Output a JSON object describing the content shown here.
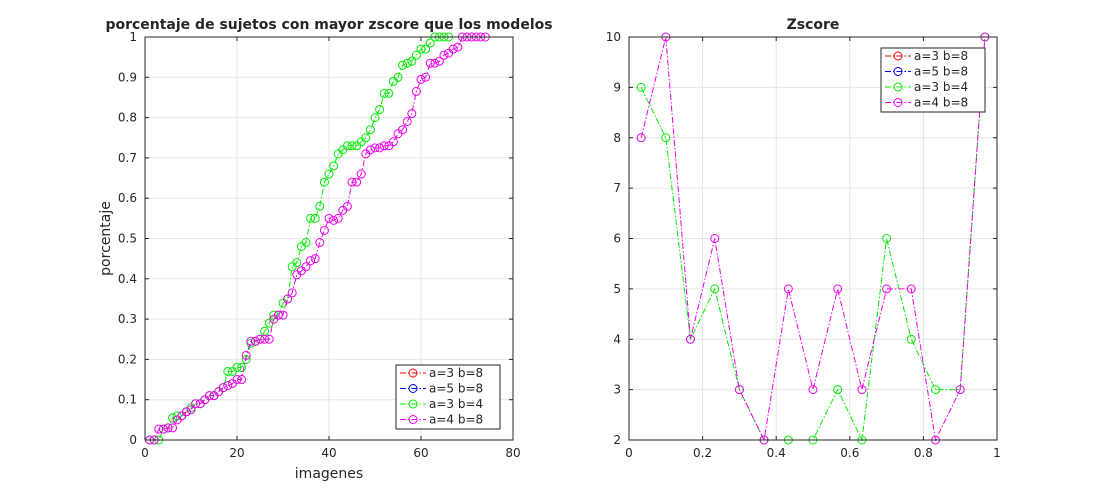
{
  "chart_data": [
    {
      "type": "line",
      "title": "porcentaje de sujetos con mayor zscore que los modelos",
      "xlabel": "imagenes",
      "ylabel": "porcentaje",
      "xlim": [
        0,
        80
      ],
      "ylim": [
        0,
        1
      ],
      "xticks": [
        "0",
        "20",
        "40",
        "60",
        "80"
      ],
      "yticks": [
        "0",
        "0.1",
        "0.2",
        "0.3",
        "0.4",
        "0.5",
        "0.6",
        "0.7",
        "0.8",
        "0.9",
        "1"
      ],
      "grid": true,
      "legend_position": "bottom-right",
      "series": [
        {
          "name": "a=3 b=8",
          "color": "#ff0000",
          "marker": "circle",
          "line": "dash-dot",
          "x": [],
          "y": []
        },
        {
          "name": "a=5 b=8",
          "color": "#0000ff",
          "marker": "circle",
          "line": "dash-dot",
          "x": [],
          "y": []
        },
        {
          "name": "a=3 b=4",
          "color": "#00ee00",
          "marker": "circle",
          "line": "dash-dot",
          "x": [
            1,
            2,
            3,
            4,
            5,
            6,
            7,
            8,
            9,
            10,
            11,
            12,
            13,
            14,
            15,
            16,
            17,
            18,
            19,
            20,
            21,
            22,
            23,
            24,
            25,
            26,
            27,
            28,
            29,
            30,
            31,
            32,
            33,
            34,
            35,
            36,
            37,
            38,
            39,
            40,
            41,
            42,
            43,
            44,
            45,
            46,
            47,
            48,
            49,
            50,
            51,
            52,
            53,
            54,
            55,
            56,
            57,
            58,
            59,
            60,
            61,
            62,
            63,
            64,
            65,
            66
          ],
          "y": [
            0,
            0,
            0,
            0.027,
            0.03,
            0.055,
            0.06,
            0.06,
            0.07,
            0.08,
            0.09,
            0.09,
            0.1,
            0.11,
            0.11,
            0.12,
            0.13,
            0.17,
            0.17,
            0.18,
            0.18,
            0.2,
            0.24,
            0.245,
            0.25,
            0.27,
            0.29,
            0.31,
            0.31,
            0.34,
            0.35,
            0.43,
            0.44,
            0.48,
            0.49,
            0.55,
            0.55,
            0.58,
            0.64,
            0.66,
            0.68,
            0.71,
            0.72,
            0.73,
            0.73,
            0.73,
            0.74,
            0.75,
            0.77,
            0.8,
            0.82,
            0.86,
            0.86,
            0.89,
            0.9,
            0.93,
            0.935,
            0.94,
            0.955,
            0.97,
            0.97,
            0.985,
            1,
            1,
            1,
            1
          ]
        },
        {
          "name": "a=4 b=8",
          "color": "#ee00ee",
          "marker": "circle",
          "line": "dash-dot",
          "x": [
            1,
            2,
            3,
            4,
            5,
            6,
            7,
            8,
            9,
            10,
            11,
            12,
            13,
            14,
            15,
            16,
            17,
            18,
            19,
            20,
            21,
            22,
            23,
            24,
            25,
            26,
            27,
            28,
            29,
            30,
            31,
            32,
            33,
            34,
            35,
            36,
            37,
            38,
            39,
            40,
            41,
            42,
            43,
            44,
            45,
            46,
            47,
            48,
            49,
            50,
            51,
            52,
            53,
            54,
            55,
            56,
            57,
            58,
            59,
            60,
            61,
            62,
            63,
            64,
            65,
            66,
            67,
            68,
            69,
            70,
            71,
            72,
            73,
            74
          ],
          "y": [
            0,
            0,
            0.027,
            0.027,
            0.03,
            0.03,
            0.05,
            0.06,
            0.07,
            0.075,
            0.09,
            0.09,
            0.1,
            0.11,
            0.11,
            0.12,
            0.13,
            0.135,
            0.14,
            0.15,
            0.15,
            0.21,
            0.245,
            0.245,
            0.25,
            0.25,
            0.25,
            0.3,
            0.31,
            0.31,
            0.35,
            0.365,
            0.41,
            0.42,
            0.43,
            0.445,
            0.45,
            0.49,
            0.52,
            0.55,
            0.545,
            0.55,
            0.57,
            0.58,
            0.64,
            0.64,
            0.66,
            0.71,
            0.72,
            0.725,
            0.725,
            0.73,
            0.73,
            0.74,
            0.76,
            0.77,
            0.79,
            0.81,
            0.865,
            0.895,
            0.9,
            0.935,
            0.935,
            0.94,
            0.955,
            0.96,
            0.97,
            0.975,
            1,
            1,
            1,
            1,
            1,
            1
          ]
        }
      ]
    },
    {
      "type": "line",
      "title": "Zscore",
      "xlabel": "",
      "ylabel": "",
      "xlim": [
        0,
        1
      ],
      "ylim": [
        2,
        10
      ],
      "xticks": [
        "0",
        "0.2",
        "0.4",
        "0.6",
        "0.8",
        "1"
      ],
      "yticks": [
        "2",
        "3",
        "4",
        "5",
        "6",
        "7",
        "8",
        "9",
        "10"
      ],
      "grid": true,
      "legend_position": "top-right",
      "series": [
        {
          "name": "a=3 b=8",
          "color": "#ff0000",
          "marker": "circle",
          "line": "dash-dot",
          "x": [],
          "y": []
        },
        {
          "name": "a=5 b=8",
          "color": "#0000ff",
          "marker": "circle",
          "line": "dash-dot",
          "x": [],
          "y": []
        },
        {
          "name": "a=3 b=4",
          "color": "#00ee00",
          "marker": "circle",
          "line": "dash-dot",
          "x": [
            0.033,
            0.1,
            0.167,
            0.233,
            0.3,
            0.367,
            0.433,
            0.5,
            0.567,
            0.633,
            0.7,
            0.767,
            0.833,
            0.9,
            0.967
          ],
          "y": [
            9,
            8,
            4,
            5,
            3,
            2,
            2,
            2,
            3,
            2,
            6,
            4,
            3,
            3,
            10
          ]
        },
        {
          "name": "a=4 b=8",
          "color": "#ee00ee",
          "marker": "circle",
          "line": "dash-dot",
          "x": [
            0.033,
            0.1,
            0.167,
            0.233,
            0.3,
            0.367,
            0.433,
            0.5,
            0.567,
            0.633,
            0.7,
            0.767,
            0.833,
            0.9,
            0.967
          ],
          "y": [
            8,
            10,
            4,
            6,
            3,
            2,
            5,
            3,
            5,
            3,
            5,
            5,
            2,
            3,
            10
          ]
        }
      ]
    }
  ]
}
